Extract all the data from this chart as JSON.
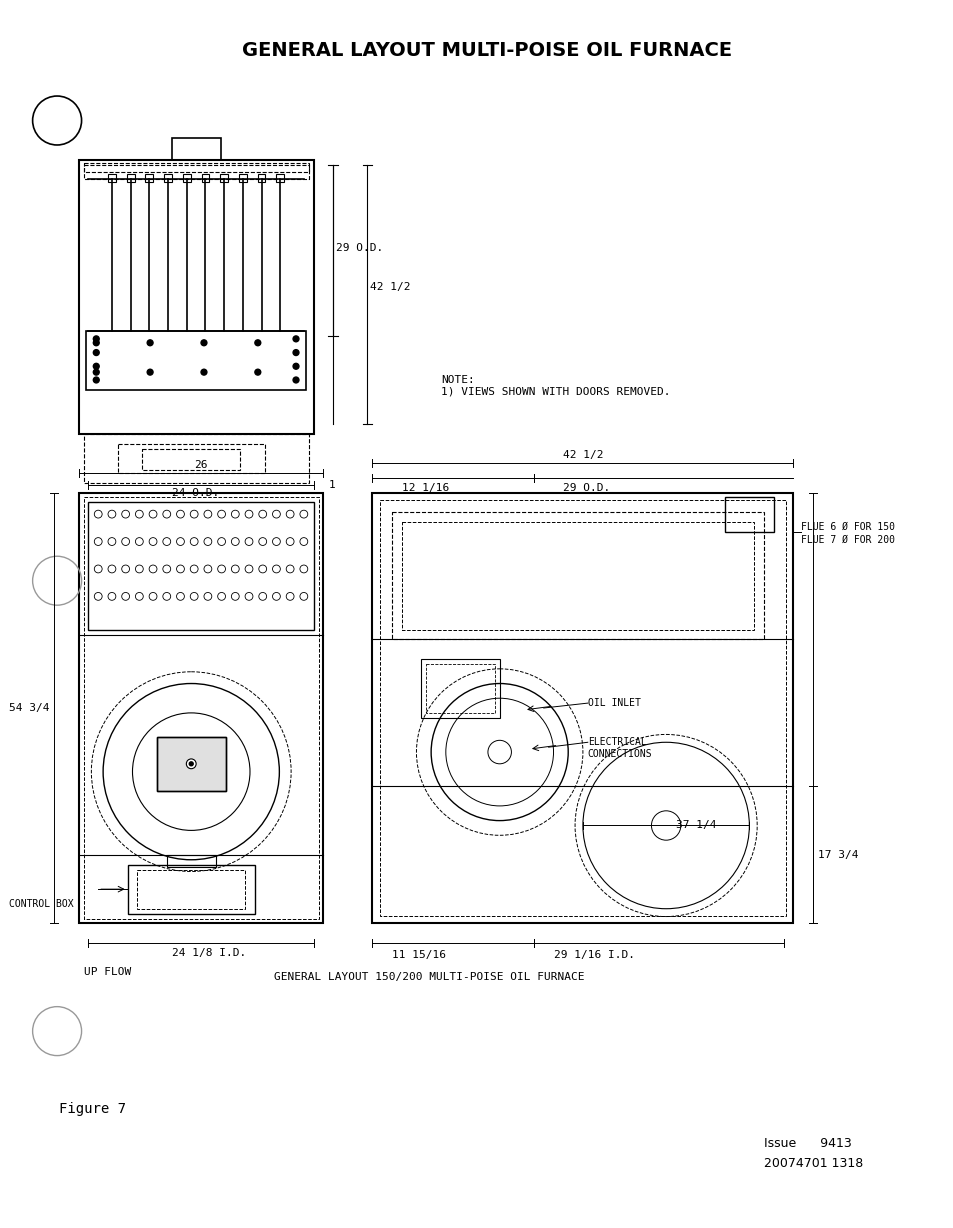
{
  "title": "GENERAL LAYOUT MULTI-POISE OIL FURNACE",
  "title_fontsize": 14,
  "title_fontweight": "bold",
  "bg_color": "#ffffff",
  "line_color": "#000000",
  "text_color": "#000000",
  "figure_label": "Figure 7",
  "issue_line1": "Issue      9413",
  "issue_line2": "20074701 1318",
  "note_text": "NOTE:\n1) VIEWS SHOWN WITH DOORS REMOVED.",
  "caption": "GENERAL LAYOUT 150/200 MULTI-POISE OIL FURNACE",
  "upflow_label": "UP FLOW",
  "dim_29od": "29 O.D.",
  "dim_42half": "42 1/2",
  "dim_26": "26",
  "dim_24od": "24 O.D.",
  "dim_1": "1",
  "dim_54_3_4": "54 3/4",
  "dim_24_1_8_id": "24 1/8 I.D.",
  "dim_12_1_16": "12 1/16",
  "dim_42half_top": "42 1/2",
  "dim_29od_top": "29 O.D.",
  "dim_37_1_4": "37 1/4",
  "dim_17_3_4": "17 3/4",
  "dim_11_15_16": "11 15/16",
  "dim_29_1_16_id": "29 1/16 I.D.",
  "flue_text1": "FLUE 6 Ø FOR 150",
  "flue_text2": "FLUE 7 Ø FOR 200",
  "oil_inlet": "OIL INLET",
  "elec_conn": "ELECTRICAL\nCONNECTIONS",
  "control_box": "CONTROL BOX"
}
